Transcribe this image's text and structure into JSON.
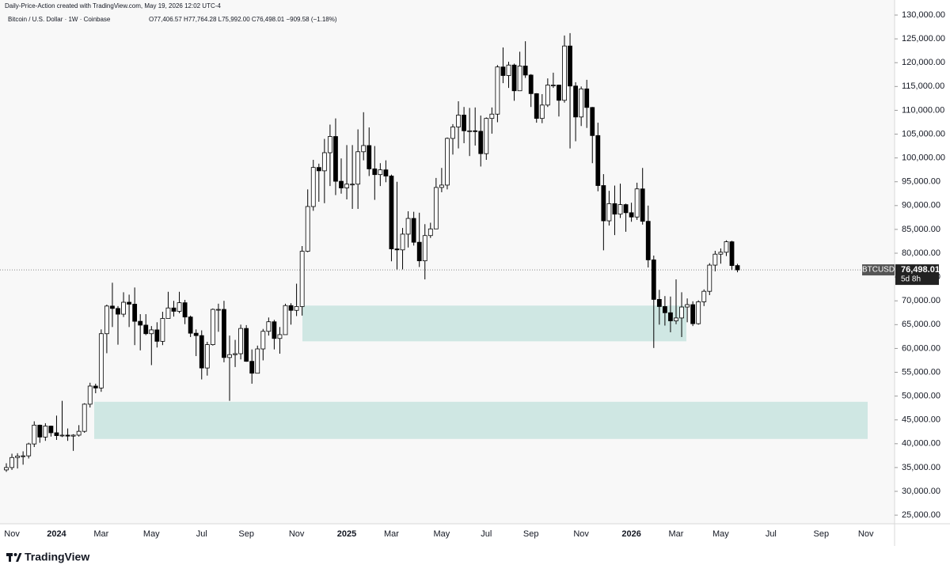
{
  "chart_data": {
    "type": "candlestick",
    "title": "Daily-Price-Action created with TradingView.com, May 19, 2026 12:02 UTC-4",
    "subtitle": "Bitcoin / U.S. Dollar · 1W · Coinbase",
    "ohlc_text": "O77,406.57 H77,764.28 L75,992.00 C76,498.01 −909.58 (−1.18%)",
    "brand": "TradingView",
    "categories": [
      null,
      "Nov",
      null,
      null,
      null,
      null,
      null,
      null,
      null,
      "2024",
      null,
      null,
      null,
      null,
      null,
      null,
      null,
      "Mar",
      null,
      null,
      null,
      null,
      null,
      null,
      null,
      null,
      "May",
      null,
      null,
      null,
      null,
      null,
      null,
      null,
      null,
      "Jul",
      null,
      null,
      null,
      null,
      null,
      null,
      null,
      "Sep",
      null,
      null,
      null,
      null,
      null,
      null,
      null,
      null,
      "Nov",
      null,
      null,
      null,
      null,
      null,
      null,
      null,
      null,
      "2025",
      null,
      null,
      null,
      null,
      null,
      null,
      null,
      "Mar",
      null,
      null,
      null,
      null,
      null,
      null,
      null,
      null,
      "May",
      null,
      null,
      null,
      null,
      null,
      null,
      null,
      "Jul",
      null,
      null,
      null,
      null,
      null,
      null,
      null,
      "Sep",
      null,
      null,
      null,
      null,
      null,
      null,
      null,
      null,
      "Nov",
      null,
      null,
      null,
      null,
      null,
      null,
      null,
      null,
      "2026",
      null,
      null,
      null,
      null,
      null,
      null,
      null,
      "Mar",
      null,
      null,
      null,
      null,
      null,
      null,
      null,
      "May",
      null,
      null,
      null,
      null,
      null,
      null,
      null,
      null,
      "Jul",
      null,
      null,
      null,
      null,
      null,
      null,
      null,
      null,
      "Sep",
      null,
      null,
      null,
      null,
      null,
      null,
      null,
      "Nov",
      null,
      null
    ],
    "open": [
      34500,
      35000,
      37100,
      37400,
      37450,
      39950,
      43900,
      41400,
      43700,
      42300,
      41700,
      41800,
      41600,
      41800,
      42600,
      48300,
      52100,
      51700,
      63100,
      68900,
      68400,
      67200,
      69700,
      69300,
      65700,
      64900,
      63100,
      63900,
      61500,
      66300,
      68500,
      67800,
      69600,
      66600,
      63200,
      62700,
      55900,
      60800,
      68200,
      68200,
      58100,
      58700,
      58900,
      64200,
      57300,
      54800,
      59900,
      63600,
      65600,
      62100,
      62900,
      69000,
      68000,
      68800,
      80400,
      89800,
      98000,
      97300,
      101100,
      104500,
      95100,
      93700,
      94500,
      94500,
      101300,
      102600,
      97700,
      96500,
      97500,
      96200,
      80900,
      80700,
      84000,
      87300,
      82300,
      78400,
      83700,
      85100,
      93800,
      94300,
      104100,
      106500,
      109000,
      105700,
      105700,
      105600,
      100900,
      108300,
      109200,
      119100,
      117300,
      119500,
      114100,
      119300,
      117400,
      113500,
      108300,
      111100,
      115300,
      115300,
      112100,
      123500,
      115100,
      108600,
      114500,
      110600,
      104700,
      94200,
      86800,
      90400,
      88200,
      90200,
      88500,
      87600,
      93500,
      86700,
      78600,
      70300,
      68800,
      67500,
      65800,
      66400,
      68700,
      69200,
      65200,
      69800,
      72000,
      77500,
      79800,
      80200,
      82400,
      77406.57,
      null,
      null,
      null,
      null,
      null,
      null,
      null,
      null,
      null,
      null,
      null,
      null,
      null,
      null,
      null,
      null,
      null,
      null,
      null,
      null,
      null,
      null,
      null,
      null,
      null
    ],
    "high": [
      35900,
      37900,
      38000,
      38400,
      40200,
      44700,
      44000,
      44300,
      43800,
      45900,
      49000,
      43200,
      42000,
      43900,
      48500,
      52800,
      52600,
      64000,
      69200,
      73800,
      68900,
      71800,
      71300,
      72800,
      67200,
      67200,
      64700,
      65500,
      67700,
      71900,
      70000,
      71900,
      70200,
      66900,
      64000,
      63800,
      61400,
      68400,
      69400,
      70000,
      62700,
      61800,
      65000,
      64900,
      59800,
      60600,
      64100,
      66500,
      66000,
      64500,
      69400,
      69500,
      73600,
      81500,
      93400,
      99600,
      98800,
      104000,
      107000,
      108300,
      99900,
      102700,
      102700,
      106000,
      109600,
      106400,
      102500,
      98900,
      99500,
      96500,
      95000,
      85300,
      88800,
      88700,
      88500,
      86100,
      86400,
      95800,
      97900,
      104300,
      107100,
      111900,
      110700,
      110500,
      110600,
      108900,
      108500,
      110600,
      119500,
      123200,
      120200,
      119800,
      122300,
      124500,
      117600,
      113600,
      113400,
      116700,
      117900,
      115400,
      125700,
      126200,
      115900,
      115000,
      116400,
      110700,
      107400,
      96600,
      93100,
      94200,
      94600,
      90400,
      90600,
      94800,
      97900,
      90000,
      79500,
      72300,
      71000,
      70900,
      74500,
      71800,
      70500,
      69900,
      70100,
      72400,
      77900,
      80500,
      81000,
      82700,
      82600,
      77764.28,
      null,
      null,
      null,
      null,
      null,
      null,
      null,
      null,
      null,
      null,
      null,
      null,
      null,
      null,
      null,
      null,
      null,
      null,
      null,
      null,
      null,
      null,
      null,
      null,
      null
    ],
    "low": [
      34100,
      34500,
      34800,
      35600,
      36900,
      39300,
      40200,
      40600,
      41500,
      40800,
      41400,
      40600,
      38500,
      41500,
      42300,
      47600,
      50600,
      50900,
      59000,
      64500,
      60800,
      66600,
      64500,
      60700,
      59600,
      62800,
      56500,
      60200,
      60700,
      66300,
      66700,
      67400,
      65100,
      62400,
      58400,
      53500,
      54300,
      60600,
      63500,
      57100,
      49000,
      56100,
      57700,
      57200,
      52600,
      54800,
      57500,
      62700,
      59800,
      58900,
      62900,
      65000,
      66800,
      66900,
      80200,
      88900,
      90800,
      90500,
      94100,
      92200,
      92500,
      91300,
      89300,
      89300,
      99500,
      96200,
      91200,
      94100,
      94900,
      78300,
      76600,
      76600,
      81200,
      81600,
      77100,
      74500,
      83200,
      85100,
      92800,
      93400,
      100700,
      102000,
      103100,
      100400,
      102600,
      98200,
      99600,
      105100,
      107500,
      115700,
      114700,
      112000,
      114100,
      116800,
      110700,
      107400,
      107300,
      110700,
      114700,
      108700,
      111600,
      102000,
      103500,
      106700,
      106300,
      98900,
      93000,
      80600,
      85800,
      83800,
      87400,
      84500,
      86600,
      87000,
      86000,
      77000,
      60100,
      65000,
      64800,
      63400,
      65100,
      62400,
      65500,
      64700,
      65000,
      68900,
      71200,
      76200,
      77800,
      79400,
      76500,
      75992,
      null,
      null,
      null,
      null,
      null,
      null,
      null,
      null,
      null,
      null,
      null,
      null,
      null,
      null,
      null,
      null,
      null,
      null,
      null,
      null,
      null,
      null,
      null,
      null,
      null
    ],
    "close": [
      35000,
      37100,
      37400,
      37450,
      39950,
      43900,
      41400,
      43700,
      42300,
      41700,
      41800,
      41600,
      41800,
      42600,
      48300,
      52100,
      51700,
      63100,
      68900,
      68400,
      67200,
      69700,
      69300,
      65700,
      64900,
      63100,
      63900,
      61500,
      66300,
      68500,
      67800,
      69600,
      66600,
      63200,
      62700,
      55900,
      60800,
      68200,
      68200,
      58100,
      58700,
      58900,
      64200,
      57300,
      54800,
      59900,
      63600,
      65600,
      62100,
      62900,
      69000,
      68000,
      68800,
      80400,
      89800,
      98000,
      97300,
      101100,
      104500,
      95100,
      93700,
      94500,
      94500,
      101300,
      102600,
      97700,
      96500,
      97500,
      96200,
      80900,
      80700,
      84000,
      87300,
      82300,
      78400,
      83700,
      85100,
      93800,
      94300,
      104100,
      106500,
      109000,
      105700,
      105700,
      105600,
      100900,
      108300,
      109200,
      119100,
      117300,
      119500,
      114100,
      119300,
      117400,
      113500,
      108300,
      111100,
      115300,
      115300,
      112100,
      123500,
      115100,
      108600,
      114500,
      110600,
      104700,
      94200,
      86800,
      90400,
      88200,
      90200,
      88500,
      87600,
      93500,
      86700,
      78600,
      70300,
      68800,
      67500,
      65800,
      66400,
      68700,
      69200,
      65200,
      69800,
      72000,
      77500,
      79800,
      80200,
      82400,
      77406.57,
      76498.01,
      null,
      null,
      null,
      null,
      null,
      null,
      null,
      null,
      null,
      null,
      null,
      null,
      null,
      null,
      null,
      null,
      null,
      null,
      null,
      null,
      null,
      null,
      null,
      null,
      null
    ],
    "up_color": "#ffffff",
    "down_color": "#000000",
    "ylim": [
      23190,
      133160
    ],
    "yticks": [
      {
        "value": 25000,
        "label": "25,000.00"
      },
      {
        "value": 30000,
        "label": "30,000.00"
      },
      {
        "value": 35000,
        "label": "35,000.00"
      },
      {
        "value": 40000,
        "label": "40,000.00"
      },
      {
        "value": 45000,
        "label": "45,000.00"
      },
      {
        "value": 50000,
        "label": "50,000.00"
      },
      {
        "value": 55000,
        "label": "55,000.00"
      },
      {
        "value": 60000,
        "label": "60,000.00"
      },
      {
        "value": 65000,
        "label": "65,000.00"
      },
      {
        "value": 70000,
        "label": "70,000.00"
      },
      {
        "value": 75000,
        "label": "75,000.00"
      },
      {
        "value": 80000,
        "label": "80,000.00"
      },
      {
        "value": 85000,
        "label": "85,000.00"
      },
      {
        "value": 90000,
        "label": "90,000.00"
      },
      {
        "value": 95000,
        "label": "95,000.00"
      },
      {
        "value": 100000,
        "label": "100,000.00"
      },
      {
        "value": 105000,
        "label": "105,000.00"
      },
      {
        "value": 110000,
        "label": "110,000.00"
      },
      {
        "value": 115000,
        "label": "115,000.00"
      },
      {
        "value": 120000,
        "label": "120,000.00"
      },
      {
        "value": 125000,
        "label": "125,000.00"
      },
      {
        "value": 130000,
        "label": "130,000.00"
      }
    ],
    "grid": false,
    "last_price": {
      "value": 76498.01,
      "label": "76,498.01",
      "symbol": "BTCUSD",
      "countdown": "5d 8h"
    },
    "zones": [
      {
        "low": 61500,
        "high": 69000,
        "color": "#cfe7e3"
      },
      {
        "low": 41000,
        "high": 48800,
        "color": "#cfe7e3"
      }
    ]
  }
}
